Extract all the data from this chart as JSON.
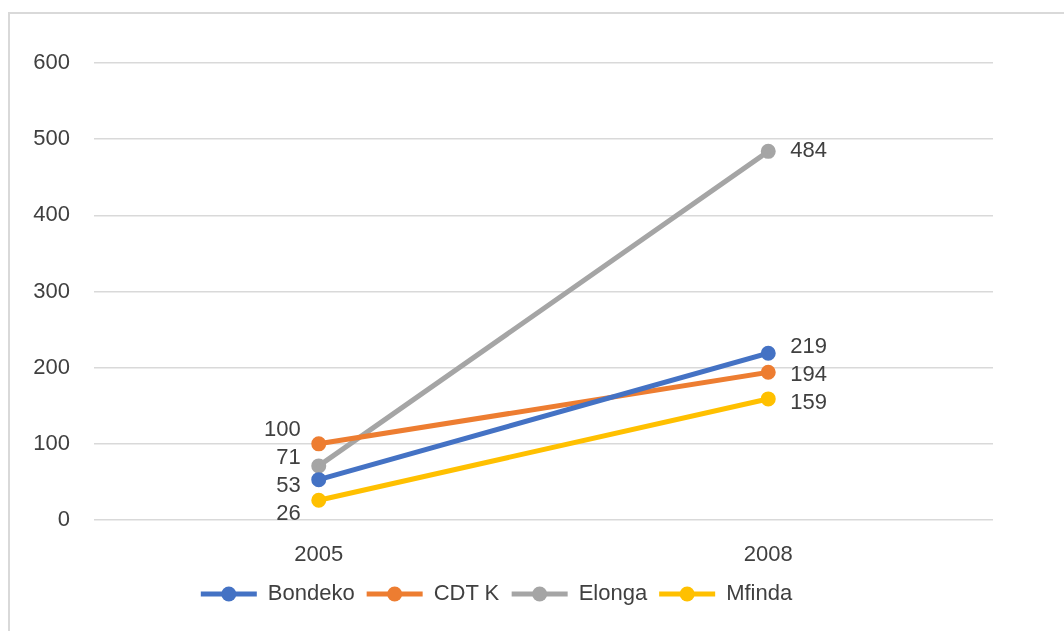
{
  "chart_data": {
    "type": "line",
    "categories": [
      "2005",
      "2008"
    ],
    "series": [
      {
        "name": "Bondeko",
        "color": "#4472c4",
        "values": [
          53,
          219
        ]
      },
      {
        "name": "CDT K",
        "color": "#ed7d31",
        "values": [
          100,
          194
        ]
      },
      {
        "name": "Elonga",
        "color": "#a5a5a5",
        "values": [
          71,
          484
        ]
      },
      {
        "name": "Mfinda",
        "color": "#ffc000",
        "values": [
          26,
          159
        ]
      }
    ],
    "ylim": [
      0,
      600
    ],
    "yticks": [
      0,
      100,
      200,
      300,
      400,
      500,
      600
    ],
    "grid": "y",
    "legend": "bottom",
    "marker": "circle",
    "line_style": "solid",
    "data_labels": true
  }
}
